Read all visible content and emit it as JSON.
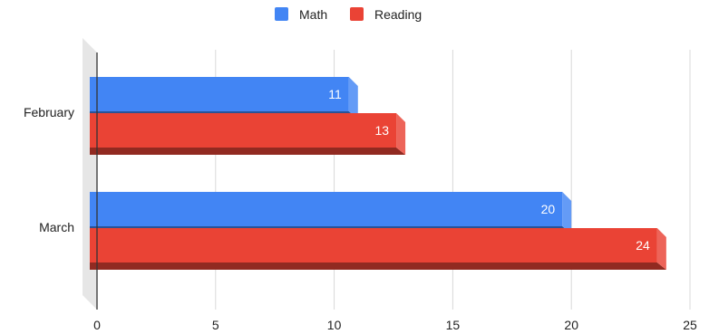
{
  "chart_data": {
    "type": "bar",
    "orientation": "horizontal",
    "style": "3d",
    "title": "",
    "xlabel": "",
    "ylabel": "",
    "categories": [
      "February",
      "March"
    ],
    "series": [
      {
        "name": "Math",
        "color": "#4285f4",
        "values": [
          11,
          20
        ]
      },
      {
        "name": "Reading",
        "color": "#ea4335",
        "values": [
          13,
          24
        ]
      }
    ],
    "xlim": [
      0,
      25
    ],
    "xticks": [
      "0",
      "5",
      "10",
      "15",
      "20",
      "25"
    ],
    "grid": true,
    "legend_position": "top",
    "data_labels": true
  }
}
